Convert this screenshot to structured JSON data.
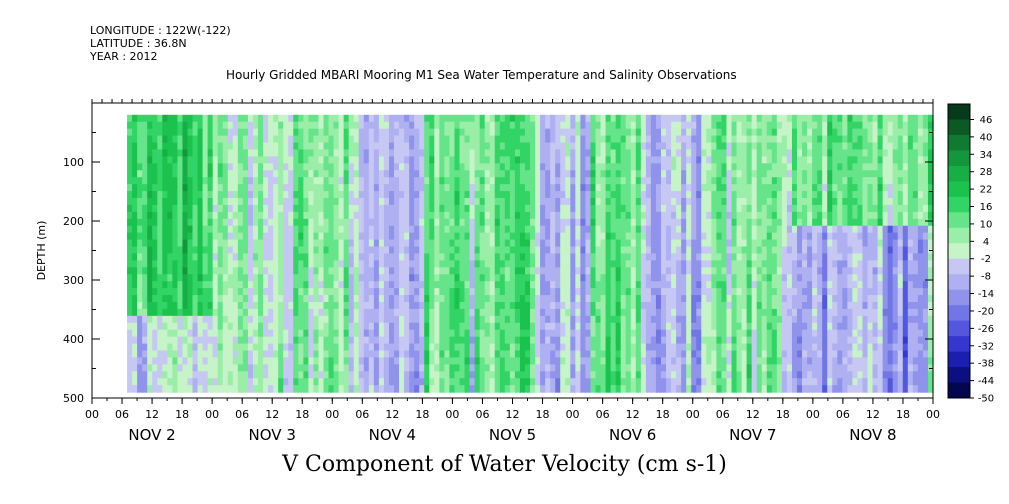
{
  "header": {
    "longitude": "LONGITUDE : 122W(-122)",
    "latitude": "LATITUDE : 36.8N",
    "year": "YEAR : 2012",
    "subtitle": "Hourly Gridded MBARI Mooring M1 Sea Water Temperature and Salinity Observations"
  },
  "chart_data": {
    "type": "heatmap",
    "title": "V Component of Water Velocity (cm s-1)",
    "xlabel": "",
    "ylabel": "DEPTH (m)",
    "x_range_hours": [
      0,
      168
    ],
    "ylim": [
      500,
      0
    ],
    "y_data_range": [
      20,
      490
    ],
    "y_ticks": [
      100,
      200,
      300,
      400,
      500
    ],
    "x_hour_labels": [
      "00",
      "06",
      "12",
      "18",
      "00",
      "06",
      "12",
      "18",
      "00",
      "06",
      "12",
      "18",
      "00",
      "06",
      "12",
      "18",
      "00",
      "06",
      "12",
      "18",
      "00",
      "06",
      "12",
      "18",
      "00",
      "06",
      "12",
      "18",
      "00"
    ],
    "day_labels": [
      "NOV 2",
      "NOV 3",
      "NOV 4",
      "NOV 5",
      "NOV 6",
      "NOV 7",
      "NOV 8"
    ],
    "colorbar": {
      "labels": [
        "46",
        "40",
        "34",
        "28",
        "22",
        "16",
        "10",
        "4",
        "-2",
        "-8",
        "-14",
        "-20",
        "-26",
        "-32",
        "-38",
        "-44",
        "-50"
      ],
      "colors": [
        "#063a1a",
        "#0b5a26",
        "#107a33",
        "#14963d",
        "#17ae46",
        "#1bc24e",
        "#33d466",
        "#66e48a",
        "#9aeea8",
        "#c6f3c8",
        "#c7c7f3",
        "#aeb0f1",
        "#9093ec",
        "#7176e6",
        "#5257dd",
        "#3438d0",
        "#1b1fb0",
        "#0c0f80",
        "#050650"
      ],
      "value_range": [
        -50,
        46
      ]
    },
    "dominant_pattern": [
      {
        "start_hour": 8,
        "end_hour": 22,
        "sign": "positive",
        "note": "green from top to ~350 m, blue near bottom"
      },
      {
        "start_hour": 27,
        "end_hour": 40,
        "sign": "mixed",
        "note": "blue columns around NOV 3 12-18"
      },
      {
        "start_hour": 52,
        "end_hour": 66,
        "sign": "negative",
        "note": "blue column near NOV 4 12-18"
      },
      {
        "start_hour": 90,
        "end_hour": 100,
        "sign": "negative",
        "note": "strong blue column NOV 5 12-18"
      },
      {
        "start_hour": 110,
        "end_hour": 122,
        "sign": "negative",
        "note": "blue columns NOV 6"
      },
      {
        "start_hour": 140,
        "end_hour": 168,
        "sign": "mixed",
        "note": "green upper, blue lower on NOV 8"
      }
    ]
  }
}
